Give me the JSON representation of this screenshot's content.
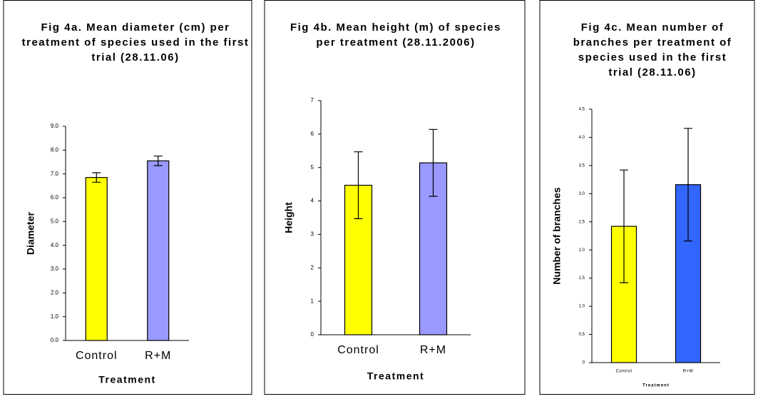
{
  "chart_data": [
    {
      "type": "bar",
      "title": "Fig 4a. Mean diameter (cm) per treatment of species used in the first trial (28.11.06)",
      "x_label": "Treatment",
      "y_label": "Diameter",
      "categories": [
        "Control",
        "R+M"
      ],
      "values": [
        6.85,
        7.55
      ],
      "errors": [
        0.2,
        0.2
      ],
      "colors": [
        "#ffff00",
        "#9999ff"
      ],
      "ylim": [
        0,
        9
      ],
      "yticks": [
        {
          "value": 0,
          "label": "0.0"
        },
        {
          "value": 1,
          "label": "1.0"
        },
        {
          "value": 2,
          "label": "2.0"
        },
        {
          "value": 3,
          "label": "3.0"
        },
        {
          "value": 4,
          "label": "4.0"
        },
        {
          "value": 5,
          "label": "5.0"
        },
        {
          "value": 6,
          "label": "6.0"
        },
        {
          "value": 7,
          "label": "7.0"
        },
        {
          "value": 8,
          "label": "8.0"
        },
        {
          "value": 9,
          "label": "9.0"
        }
      ]
    },
    {
      "type": "bar",
      "title": "Fig 4b. Mean height (m) of species per treatment (28.11.2006)",
      "x_label": "Treatment",
      "y_label": "Height",
      "categories": [
        "Control",
        "R+M"
      ],
      "values": [
        4.47,
        5.14
      ],
      "errors": [
        1.0,
        1.0
      ],
      "colors": [
        "#ffff00",
        "#9999ff"
      ],
      "ylim": [
        0,
        7
      ],
      "yticks": [
        0,
        1,
        2,
        3,
        4,
        5,
        6,
        7
      ]
    },
    {
      "type": "bar",
      "title": "Fig 4c. Mean number of branches per treatment of species used in the first trial (28.11.06)",
      "x_label": "Treatment",
      "y_label": "Number of branches",
      "categories": [
        "Control",
        "R+M"
      ],
      "values": [
        2.42,
        3.16
      ],
      "errors": [
        1.0,
        1.0
      ],
      "colors": [
        "#ffff00",
        "#3366ff"
      ],
      "ylim": [
        0,
        4.5
      ],
      "yticks": [
        0,
        0.5,
        {
          "value": 1,
          "label": "1.0"
        },
        1.5,
        {
          "value": 2,
          "label": "2.0"
        },
        2.5,
        {
          "value": 3,
          "label": "3.0"
        },
        3.5,
        {
          "value": 4,
          "label": "4.0"
        },
        4.5
      ]
    }
  ]
}
